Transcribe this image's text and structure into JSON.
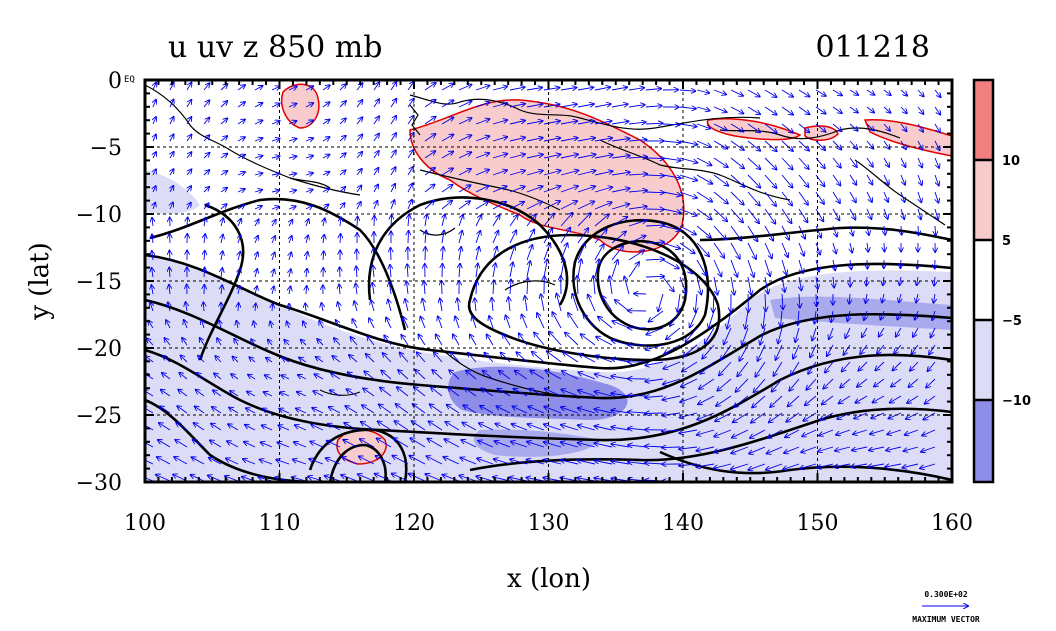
{
  "chart_data": {
    "type": "vector-contour-map",
    "title_left": "u uv z 850 mb",
    "title_right": "011218",
    "xlabel": "x (lon)",
    "ylabel": "y (lat)",
    "xlim": [
      100,
      160
    ],
    "ylim": [
      -30,
      0
    ],
    "x_ticks": [
      "100",
      "110",
      "120",
      "130",
      "140",
      "150",
      "160"
    ],
    "y_ticks": [
      "0",
      "−5",
      "−10",
      "−15",
      "−20",
      "−25",
      "−30"
    ],
    "equator_label": "EQ",
    "grid": true,
    "colorbar": {
      "labels": [
        "10",
        "5",
        "−5",
        "−10"
      ],
      "colors": [
        "#f07f7f",
        "#f8cccc",
        "#ffffff",
        "#dcdcf6",
        "#8e8ee8"
      ]
    },
    "colors": {
      "easterly_fill": "#dcdcf6",
      "strong_easterly_fill": "#8e8ee8",
      "westerly_fill": "#f8cccc",
      "westerly_outline": "#e00000",
      "vector": "#0000ee",
      "contour": "#000000"
    },
    "reference_vector": {
      "value": "0.300E+02",
      "label": "MAXIMUM VECTOR"
    }
  }
}
